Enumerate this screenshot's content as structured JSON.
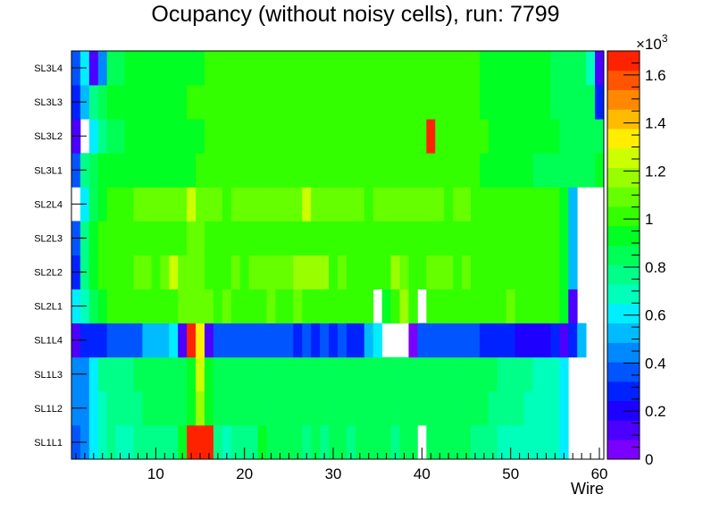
{
  "chart_data": {
    "type": "heatmap",
    "title": "Ocupancy (without noisy cells), run: 7799",
    "xlabel": "Wire",
    "ylabel": "",
    "xlim": [
      0.5,
      60.5
    ],
    "x_ticks": [
      "10",
      "20",
      "30",
      "40",
      "50",
      "60"
    ],
    "x_tick_values": [
      10,
      20,
      30,
      40,
      50,
      60
    ],
    "y_categories": [
      "SL1L1",
      "SL1L2",
      "SL1L3",
      "SL1L4",
      "SL2L1",
      "SL2L2",
      "SL2L3",
      "SL2L4",
      "SL3L1",
      "SL3L2",
      "SL3L3",
      "SL3L4"
    ],
    "z_unit_label": "×10",
    "z_unit_exponent": "3",
    "zlim": [
      0,
      1.7
    ],
    "z_ticks": [
      "0",
      "0.2",
      "0.4",
      "0.6",
      "0.8",
      "1",
      "1.2",
      "1.4",
      "1.6"
    ],
    "z_tick_values": [
      0,
      0.2,
      0.4,
      0.6,
      0.8,
      1.0,
      1.2,
      1.4,
      1.6
    ],
    "palette": [
      "#7b00ff",
      "#4c00ff",
      "#1e00ff",
      "#0022ff",
      "#0055ff",
      "#0088ff",
      "#00bbff",
      "#00eeff",
      "#00ffbb",
      "#00ff88",
      "#00ff55",
      "#00ff22",
      "#33ff00",
      "#66ff00",
      "#99ff00",
      "#ccff00",
      "#ffee00",
      "#ffbb00",
      "#ff8800",
      "#ff5500",
      "#ff2200"
    ],
    "values": [
      [
        0.35,
        0.45,
        0.62,
        0.72,
        0.74,
        0.72,
        0.72,
        0.74,
        0.74,
        0.74,
        0.74,
        0.78,
        0.9,
        1.62,
        1.68,
        1.62,
        0.78,
        0.72,
        0.74,
        0.78,
        0.78,
        0.9,
        0.82,
        0.84,
        0.82,
        0.88,
        0.78,
        0.84,
        0.78,
        0.86,
        0.88,
        0.78,
        0.88,
        0.84,
        0.82,
        0.86,
        0.74,
        0.88,
        0.84,
        0,
        0.84,
        0.82,
        0.86,
        0.84,
        0.82,
        0.8,
        0.8,
        0.74,
        0.72,
        0.72,
        0.72,
        0.72,
        0.72,
        0.72,
        0.7,
        0.6,
        0,
        0,
        0,
        0
      ],
      [
        0.45,
        0.48,
        0.6,
        0.72,
        0.75,
        0.76,
        0.78,
        0.8,
        0.82,
        0.84,
        0.84,
        0.84,
        0.84,
        0.9,
        1.2,
        0.9,
        0.84,
        0.84,
        0.84,
        0.86,
        0.86,
        0.86,
        0.86,
        0.88,
        0.88,
        0.88,
        0.88,
        0.86,
        0.86,
        0.88,
        0.88,
        0.86,
        0.88,
        0.88,
        0.86,
        0.86,
        0.86,
        0.86,
        0.86,
        0.86,
        0.86,
        0.86,
        0.86,
        0.84,
        0.84,
        0.84,
        0.82,
        0.8,
        0.78,
        0.76,
        0.74,
        0.72,
        0.72,
        0.7,
        0.68,
        0.62,
        0,
        0,
        0,
        0
      ],
      [
        0.45,
        0.48,
        0.6,
        0.74,
        0.76,
        0.78,
        0.8,
        0.82,
        0.84,
        0.84,
        0.84,
        0.84,
        0.86,
        0.9,
        1.25,
        0.9,
        0.86,
        0.86,
        0.86,
        0.86,
        0.86,
        0.88,
        0.88,
        0.88,
        0.88,
        0.88,
        0.88,
        0.88,
        0.88,
        0.88,
        0.88,
        0.88,
        0.88,
        0.88,
        0.88,
        0.88,
        0.88,
        0.88,
        0.88,
        0.88,
        0.88,
        0.86,
        0.86,
        0.86,
        0.86,
        0.84,
        0.84,
        0.82,
        0.8,
        0.78,
        0.76,
        0.74,
        0.72,
        0.7,
        0.68,
        0.62,
        0,
        0,
        0,
        0
      ],
      [
        0.1,
        0.3,
        0.3,
        0.3,
        0.4,
        0.4,
        0.4,
        0.4,
        0.5,
        0.5,
        0.5,
        0.6,
        0.1,
        1.65,
        1.3,
        0.1,
        0.4,
        0.4,
        0.4,
        0.4,
        0.4,
        0.4,
        0.4,
        0.4,
        0.4,
        0.3,
        0.4,
        0.3,
        0.4,
        0.3,
        0.4,
        0.3,
        0.3,
        0.5,
        0.6,
        0,
        0,
        0,
        0.05,
        0.4,
        0.4,
        0.4,
        0.4,
        0.4,
        0.4,
        0.4,
        0.3,
        0.3,
        0.3,
        0.3,
        0.2,
        0.2,
        0.2,
        0.2,
        0.3,
        0.1,
        0.3,
        0.5,
        0,
        0
      ],
      [
        0.6,
        0.72,
        0.82,
        0.95,
        1.05,
        1.05,
        1.05,
        1.05,
        1.05,
        1.05,
        1.05,
        1.05,
        1.1,
        1.1,
        1.1,
        1.1,
        1.05,
        1.1,
        1.05,
        1.05,
        1.05,
        1.05,
        1.1,
        1.05,
        1.05,
        1.1,
        1.05,
        1.05,
        1.05,
        1.05,
        1.05,
        1.05,
        1.05,
        1.05,
        0,
        0.95,
        1.05,
        1.15,
        1.05,
        0,
        1.05,
        1.05,
        1.05,
        1.05,
        1.05,
        1.05,
        1.05,
        1.05,
        1.05,
        1.1,
        1.05,
        1.05,
        1.05,
        1.05,
        1.05,
        0.9,
        0.15,
        0,
        0,
        0
      ],
      [
        0.25,
        0.8,
        0.95,
        1.0,
        1.05,
        1.05,
        1.05,
        1.1,
        1.1,
        1.05,
        1.1,
        1.25,
        1.1,
        1.1,
        1.1,
        1.05,
        1.05,
        1.05,
        1.1,
        1.05,
        1.1,
        1.1,
        1.1,
        1.1,
        1.1,
        1.2,
        1.2,
        1.2,
        1.2,
        1.05,
        1.1,
        1.05,
        1.05,
        1.05,
        1.05,
        1.05,
        1.2,
        1.1,
        1.05,
        1.05,
        1.1,
        1.1,
        1.1,
        1.05,
        1.1,
        1.05,
        1.05,
        1.05,
        1.05,
        1.05,
        1.05,
        1.05,
        1.05,
        1.05,
        1.05,
        0.9,
        0.5,
        0,
        0,
        0
      ],
      [
        0.4,
        0.8,
        0.95,
        1.0,
        1.05,
        1.05,
        1.05,
        1.05,
        1.05,
        1.05,
        1.05,
        1.05,
        1.05,
        1.1,
        1.1,
        1.05,
        1.05,
        1.05,
        1.05,
        1.05,
        1.05,
        1.05,
        1.05,
        1.05,
        1.05,
        1.05,
        1.05,
        1.05,
        1.05,
        1.05,
        1.05,
        1.05,
        1.05,
        1.05,
        1.05,
        1.05,
        1.05,
        1.05,
        1.05,
        1.05,
        1.05,
        1.05,
        1.05,
        1.05,
        1.05,
        1.05,
        1.05,
        1.05,
        1.05,
        1.05,
        1.05,
        1.05,
        1.05,
        1.05,
        1.05,
        0.9,
        0.5,
        0,
        0,
        0
      ],
      [
        0,
        0.62,
        0.85,
        0.95,
        1.05,
        1.05,
        1.05,
        1.1,
        1.1,
        1.1,
        1.1,
        1.1,
        1.1,
        1.25,
        1.1,
        1.1,
        1.1,
        1.05,
        1.1,
        1.1,
        1.1,
        1.1,
        1.1,
        1.1,
        1.1,
        1.1,
        1.25,
        1.1,
        1.1,
        1.1,
        1.1,
        1.1,
        1.1,
        1.05,
        1.1,
        1.1,
        1.1,
        1.1,
        1.1,
        1.1,
        1.1,
        1.1,
        1.05,
        1.1,
        1.1,
        1.05,
        1.05,
        1.05,
        1.05,
        1.05,
        1.05,
        1.05,
        1.05,
        1.05,
        1.05,
        0.9,
        0.5,
        0,
        0,
        0
      ],
      [
        0.4,
        0.8,
        0.85,
        0.9,
        0.9,
        0.92,
        0.92,
        0.94,
        0.94,
        0.94,
        0.94,
        0.94,
        0.96,
        0.96,
        1.02,
        0.98,
        0.98,
        0.98,
        0.98,
        0.98,
        1.0,
        0.98,
        1.0,
        0.98,
        1.0,
        0.98,
        1.0,
        1.0,
        1.0,
        1.0,
        1.0,
        1.0,
        1.0,
        1.0,
        1.0,
        1.0,
        1.0,
        1.0,
        1.0,
        1.0,
        1.0,
        1.0,
        1.0,
        1.0,
        0.98,
        0.98,
        0.96,
        0.94,
        0.94,
        0.92,
        0.9,
        0.9,
        0.88,
        0.88,
        0.88,
        0.88,
        0.88,
        0.88,
        0.88,
        0.9
      ],
      [
        0.15,
        0,
        0.6,
        0.78,
        0.86,
        0.88,
        0.9,
        0.9,
        0.92,
        0.92,
        0.94,
        0.94,
        0.94,
        0.96,
        0.96,
        0.98,
        0.98,
        0.98,
        0.98,
        0.98,
        1.0,
        1.0,
        1.0,
        1.0,
        1.0,
        1.0,
        1.0,
        1.0,
        1.0,
        1.0,
        1.0,
        1.0,
        1.0,
        1.0,
        1.0,
        1.0,
        1.0,
        1.0,
        1.0,
        1.0,
        1.7,
        1.0,
        1.0,
        1.0,
        1.0,
        0.98,
        0.98,
        0.96,
        0.96,
        0.94,
        0.94,
        0.92,
        0.92,
        0.9,
        0.9,
        0.88,
        0.88,
        0.88,
        0.88,
        0.88
      ],
      [
        0.3,
        0.55,
        0.74,
        0.84,
        0.9,
        0.92,
        0.92,
        0.94,
        0.94,
        0.94,
        0.96,
        0.96,
        0.96,
        0.98,
        0.98,
        0.98,
        0.98,
        1.0,
        1.0,
        1.0,
        1.0,
        1.0,
        1.0,
        1.0,
        1.0,
        1.0,
        1.0,
        1.0,
        1.0,
        1.0,
        1.0,
        1.0,
        1.0,
        1.0,
        1.0,
        1.0,
        1.0,
        1.0,
        1.0,
        1.0,
        1.0,
        1.0,
        1.0,
        1.0,
        0.98,
        0.98,
        0.96,
        0.96,
        0.94,
        0.94,
        0.92,
        0.92,
        0.9,
        0.9,
        0.88,
        0.88,
        0.88,
        0.88,
        0.88,
        0.3
      ],
      [
        0.4,
        0.62,
        0.15,
        0.42,
        0.82,
        0.88,
        0.9,
        0.92,
        0.92,
        0.94,
        0.94,
        0.94,
        0.96,
        0.96,
        0.96,
        0.98,
        0.98,
        0.98,
        1.0,
        1.0,
        1.0,
        1.0,
        1.0,
        1.0,
        1.0,
        1.0,
        1.0,
        1.0,
        1.0,
        1.0,
        1.0,
        1.0,
        1.0,
        1.0,
        1.0,
        1.0,
        1.0,
        1.0,
        1.0,
        1.0,
        1.0,
        1.0,
        1.0,
        1.0,
        0.98,
        0.98,
        0.96,
        0.96,
        0.94,
        0.94,
        0.92,
        0.92,
        0.9,
        0.9,
        0.88,
        0.88,
        0.88,
        0.88,
        0.7,
        0.1
      ]
    ]
  }
}
